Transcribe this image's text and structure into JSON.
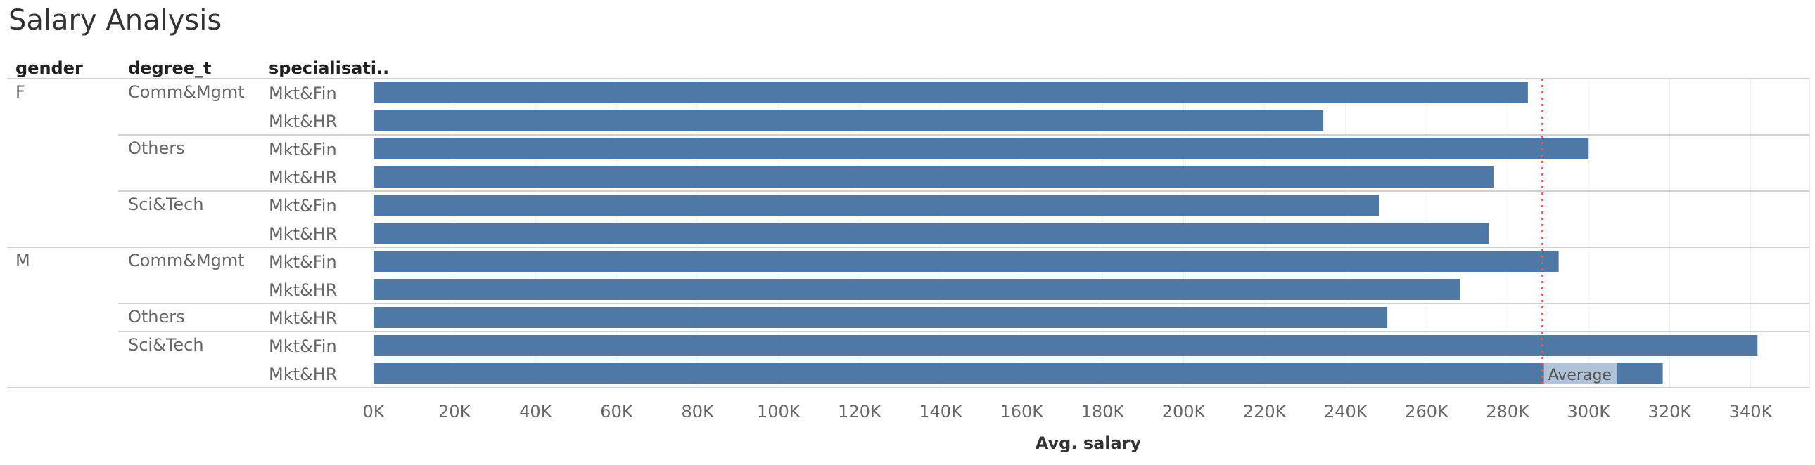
{
  "title": "Salary Analysis",
  "headers": {
    "gender": "gender",
    "degree": "degree_t",
    "specialisation": "specialisati.."
  },
  "chart_data": {
    "type": "bar",
    "orientation": "horizontal",
    "title": "Salary Analysis",
    "xlabel": "Avg. salary",
    "xlim": [
      0,
      360000
    ],
    "xticks": [
      0,
      20000,
      40000,
      60000,
      80000,
      100000,
      120000,
      140000,
      160000,
      180000,
      200000,
      220000,
      240000,
      260000,
      280000,
      300000,
      320000,
      340000
    ],
    "xtick_labels": [
      "0K",
      "20K",
      "40K",
      "60K",
      "80K",
      "100K",
      "120K",
      "140K",
      "160K",
      "180K",
      "200K",
      "220K",
      "240K",
      "260K",
      "280K",
      "300K",
      "320K",
      "340K"
    ],
    "grid": true,
    "bar_color": "#4e79a7",
    "reference_line": {
      "label": "Average",
      "value": 288600,
      "color": "#e15759"
    },
    "groups": [
      {
        "gender": "F",
        "degree": "Comm&Mgmt",
        "rows": [
          {
            "specialisation": "Mkt&Fin",
            "value": 285000
          },
          {
            "specialisation": "Mkt&HR",
            "value": 234500
          }
        ]
      },
      {
        "gender": "",
        "degree": "Others",
        "rows": [
          {
            "specialisation": "Mkt&Fin",
            "value": 300000
          },
          {
            "specialisation": "Mkt&HR",
            "value": 276500
          }
        ]
      },
      {
        "gender": "",
        "degree": "Sci&Tech",
        "rows": [
          {
            "specialisation": "Mkt&Fin",
            "value": 248200
          },
          {
            "specialisation": "Mkt&HR",
            "value": 275300
          }
        ]
      },
      {
        "gender": "M",
        "degree": "Comm&Mgmt",
        "rows": [
          {
            "specialisation": "Mkt&Fin",
            "value": 292600
          },
          {
            "specialisation": "Mkt&HR",
            "value": 268300
          }
        ]
      },
      {
        "gender": "",
        "degree": "Others",
        "rows": [
          {
            "specialisation": "Mkt&HR",
            "value": 250300
          }
        ]
      },
      {
        "gender": "",
        "degree": "Sci&Tech",
        "rows": [
          {
            "specialisation": "Mkt&Fin",
            "value": 341700
          },
          {
            "specialisation": "Mkt&HR",
            "value": 318300
          }
        ]
      }
    ]
  }
}
